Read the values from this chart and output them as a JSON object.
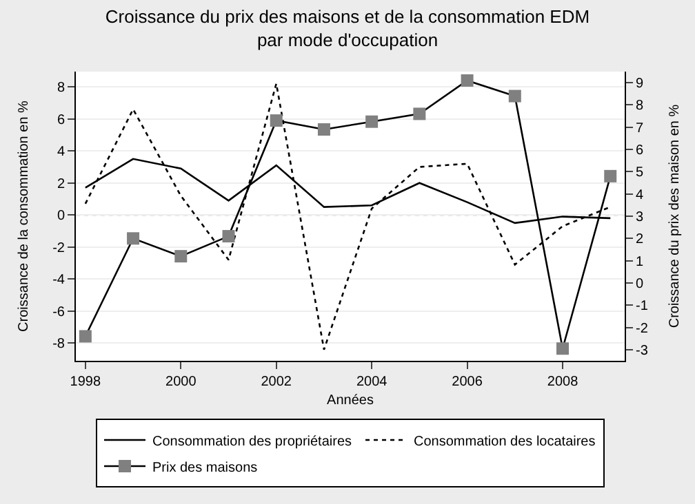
{
  "chart_data": {
    "type": "line",
    "title": "Croissance du prix des maisons et de la consommation EDM\npar mode d'occupation",
    "xlabel": "Années",
    "ylabel": "Croissance de la consommation en %",
    "y2label": "Croissance du prix des maison en %",
    "x": [
      1998,
      1999,
      2000,
      2001,
      2002,
      2003,
      2004,
      2005,
      2006,
      2007,
      2008,
      2009
    ],
    "series": [
      {
        "name": "Consommation des propriétaires",
        "color": "#000000",
        "line_style": "solid",
        "marker": "none",
        "values": [
          1.7,
          3.5,
          2.9,
          0.9,
          3.1,
          0.5,
          0.6,
          2.0,
          0.8,
          -0.5,
          -0.1,
          -0.2
        ]
      },
      {
        "name": "Consommation des locataires",
        "color": "#000000",
        "line_style": "dotted",
        "marker": "none",
        "values": [
          0.7,
          6.6,
          1.2,
          -2.8,
          8.2,
          -8.4,
          0.4,
          3.0,
          3.2,
          -3.1,
          -0.7,
          0.5
        ]
      },
      {
        "name": "Prix des maisons",
        "color": "#000000",
        "line_style": "solid",
        "marker": "square",
        "axis": "y2",
        "values": [
          -2.4,
          2.0,
          1.2,
          2.1,
          7.3,
          6.9,
          7.25,
          7.6,
          9.1,
          8.4,
          -2.95,
          4.8
        ]
      }
    ],
    "xlim": [
      1997.8,
      2009.3
    ],
    "xticks": [
      1998,
      2000,
      2002,
      2004,
      2006,
      2008
    ],
    "ylim": [
      -9.1,
      8.95
    ],
    "yticks": [
      -8,
      -6,
      -4,
      -2,
      0,
      2,
      4,
      6,
      8
    ],
    "y2lim": [
      -3.5,
      9.5
    ],
    "y2ticks": [
      -3,
      -2,
      -1,
      0,
      1,
      2,
      3,
      4,
      5,
      6,
      7,
      8,
      9
    ],
    "ref_lines": [
      {
        "axis": "y",
        "value": 0,
        "color": "#999999",
        "line_style": "dotted"
      }
    ],
    "grid": "y",
    "legend": "bottom"
  }
}
